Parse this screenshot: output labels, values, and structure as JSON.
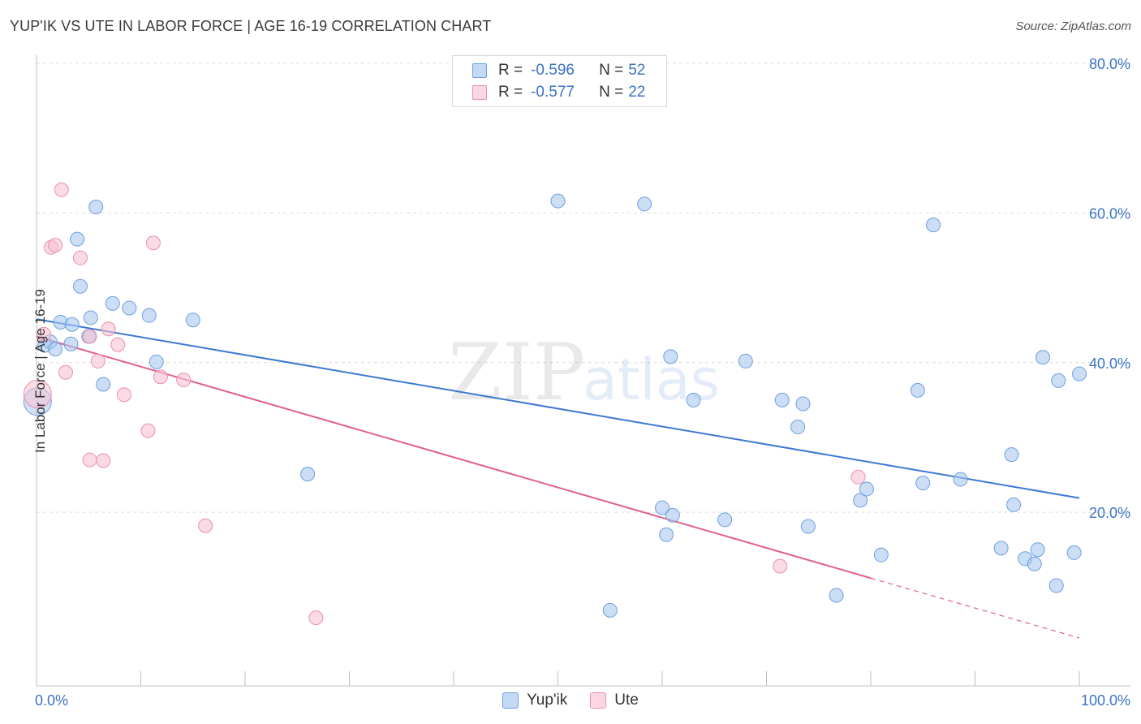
{
  "title": "YUP'IK VS UTE IN LABOR FORCE | AGE 16-19 CORRELATION CHART",
  "source": "Source: ZipAtlas.com",
  "watermark": {
    "zip": "ZIP",
    "atlas": "atlas"
  },
  "legend": {
    "rows": [
      {
        "r_label": "R =",
        "r_value": "-0.596",
        "n_label": "N =",
        "n_value": "52",
        "color": "#a9c8ef",
        "border": "#6e9fe0"
      },
      {
        "r_label": "R =",
        "r_value": "-0.577",
        "n_label": "N =",
        "n_value": "22",
        "color": "#f7c2d2",
        "border": "#ec8fae"
      }
    ]
  },
  "chart_data": {
    "type": "scatter",
    "title": "YUP'IK VS UTE IN LABOR FORCE | AGE 16-19 CORRELATION CHART",
    "xlabel": "",
    "ylabel": "In Labor Force | Age 16-19",
    "xlim": [
      0,
      100
    ],
    "ylim": [
      0,
      80
    ],
    "x_tick_labels": [
      "0.0%",
      "100.0%"
    ],
    "y_ticks": [
      20,
      40,
      60,
      80
    ],
    "y_tick_labels": [
      "20.0%",
      "40.0%",
      "60.0%",
      "80.0%"
    ],
    "grid": true,
    "series": [
      {
        "name": "Yup'ik",
        "color": "#a9c8ef",
        "stroke": "#6e9fe0",
        "line_color": "#3b78d3",
        "trend": {
          "x": [
            0,
            100
          ],
          "y": [
            45.8,
            21.9
          ]
        },
        "points": [
          {
            "x": 0.1,
            "y": 34.8,
            "big": true
          },
          {
            "x": 0.8,
            "y": 42.3
          },
          {
            "x": 1.3,
            "y": 42.8
          },
          {
            "x": 1.8,
            "y": 41.8
          },
          {
            "x": 2.3,
            "y": 45.4
          },
          {
            "x": 3.3,
            "y": 42.5
          },
          {
            "x": 3.4,
            "y": 45.1
          },
          {
            "x": 3.9,
            "y": 56.5
          },
          {
            "x": 4.2,
            "y": 50.2
          },
          {
            "x": 5.0,
            "y": 43.5
          },
          {
            "x": 5.2,
            "y": 46.0
          },
          {
            "x": 5.7,
            "y": 60.8
          },
          {
            "x": 6.4,
            "y": 37.1
          },
          {
            "x": 7.3,
            "y": 47.9
          },
          {
            "x": 8.9,
            "y": 47.3
          },
          {
            "x": 10.8,
            "y": 46.3
          },
          {
            "x": 11.5,
            "y": 40.1
          },
          {
            "x": 15.0,
            "y": 45.7
          },
          {
            "x": 26.0,
            "y": 25.1
          },
          {
            "x": 50.0,
            "y": 61.6
          },
          {
            "x": 55.0,
            "y": 6.9
          },
          {
            "x": 58.3,
            "y": 61.2
          },
          {
            "x": 60.0,
            "y": 20.6
          },
          {
            "x": 60.4,
            "y": 17.0
          },
          {
            "x": 60.8,
            "y": 40.8
          },
          {
            "x": 61.0,
            "y": 19.6
          },
          {
            "x": 63.0,
            "y": 35.0
          },
          {
            "x": 66.0,
            "y": 19.0
          },
          {
            "x": 68.0,
            "y": 40.2
          },
          {
            "x": 71.5,
            "y": 35.0
          },
          {
            "x": 73.0,
            "y": 31.4
          },
          {
            "x": 73.5,
            "y": 34.5
          },
          {
            "x": 74.0,
            "y": 18.1
          },
          {
            "x": 76.7,
            "y": 8.9
          },
          {
            "x": 79.0,
            "y": 21.6
          },
          {
            "x": 79.6,
            "y": 23.1
          },
          {
            "x": 81.0,
            "y": 14.3
          },
          {
            "x": 84.5,
            "y": 36.3
          },
          {
            "x": 85.0,
            "y": 23.9
          },
          {
            "x": 86.0,
            "y": 58.4
          },
          {
            "x": 88.6,
            "y": 24.4
          },
          {
            "x": 92.5,
            "y": 15.2
          },
          {
            "x": 93.5,
            "y": 27.7
          },
          {
            "x": 93.7,
            "y": 21.0
          },
          {
            "x": 94.8,
            "y": 13.8
          },
          {
            "x": 95.7,
            "y": 13.1
          },
          {
            "x": 96.0,
            "y": 15.0
          },
          {
            "x": 96.5,
            "y": 40.7
          },
          {
            "x": 98.0,
            "y": 37.6
          },
          {
            "x": 97.8,
            "y": 10.2
          },
          {
            "x": 99.5,
            "y": 14.6
          },
          {
            "x": 100.0,
            "y": 38.5
          }
        ]
      },
      {
        "name": "Ute",
        "color": "#f7c2d2",
        "stroke": "#ec8fae",
        "line_color": "#e0608c",
        "trend": {
          "x": [
            0,
            80
          ],
          "y": [
            43.5,
            11.2
          ]
        },
        "trend_dashed": {
          "x": [
            80,
            100
          ],
          "y": [
            11.2,
            3.2
          ]
        },
        "points": [
          {
            "x": 0.1,
            "y": 35.8,
            "big": true
          },
          {
            "x": 0.7,
            "y": 43.8
          },
          {
            "x": 1.4,
            "y": 55.4
          },
          {
            "x": 1.8,
            "y": 55.7
          },
          {
            "x": 2.4,
            "y": 63.1
          },
          {
            "x": 2.8,
            "y": 38.7
          },
          {
            "x": 4.2,
            "y": 54.0
          },
          {
            "x": 5.1,
            "y": 43.5
          },
          {
            "x": 5.1,
            "y": 27.0
          },
          {
            "x": 5.9,
            "y": 40.2
          },
          {
            "x": 6.4,
            "y": 26.9
          },
          {
            "x": 6.9,
            "y": 44.5
          },
          {
            "x": 7.8,
            "y": 42.4
          },
          {
            "x": 8.4,
            "y": 35.7
          },
          {
            "x": 10.7,
            "y": 30.9
          },
          {
            "x": 11.2,
            "y": 56.0
          },
          {
            "x": 11.9,
            "y": 38.1
          },
          {
            "x": 14.1,
            "y": 37.7
          },
          {
            "x": 16.2,
            "y": 18.2
          },
          {
            "x": 26.8,
            "y": 5.9
          },
          {
            "x": 71.3,
            "y": 12.8
          },
          {
            "x": 78.8,
            "y": 24.7
          }
        ]
      }
    ]
  },
  "bottom_legend": [
    {
      "label": "Yup'ik",
      "color": "#a9c8ef",
      "border": "#6e9fe0"
    },
    {
      "label": "Ute",
      "color": "#f7c2d2",
      "border": "#ec8fae"
    }
  ]
}
